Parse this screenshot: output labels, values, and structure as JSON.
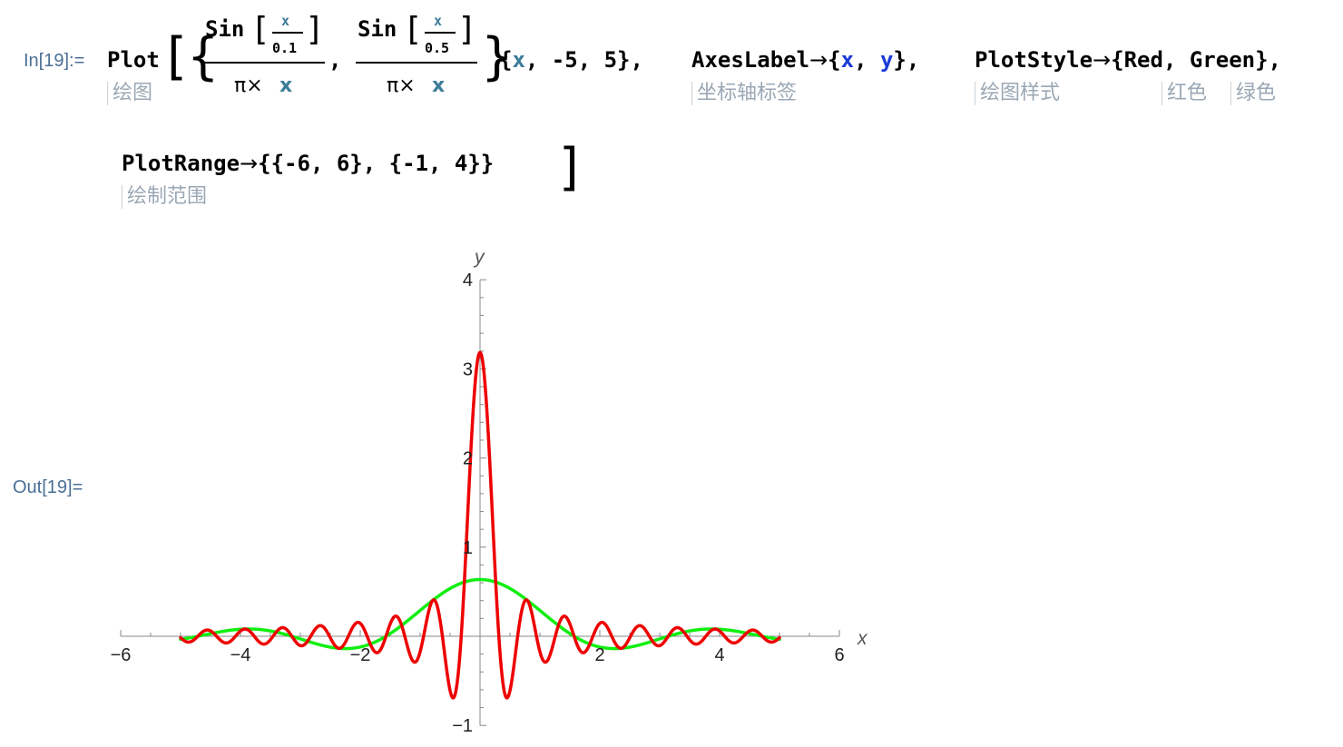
{
  "notebook": {
    "input_label": "In[19]:=",
    "output_label": "Out[19]="
  },
  "code": {
    "plot": "Plot",
    "sin1": "Sin",
    "sin2": "Sin",
    "x_small": "x",
    "den_a": "0.1",
    "den_b": "0.5",
    "pi_times": "π×",
    "x_var": "x",
    "comma": ",",
    "range_open": "{",
    "range_x": "x",
    "range_rest": ", -5, 5},",
    "axes_label_kw": "AxesLabel",
    "arrow": "→",
    "axes_x": "x",
    "axes_y": "y",
    "plot_style_kw": "PlotStyle",
    "style_values": "{Red, Green},",
    "plot_range_kw": "PlotRange",
    "plot_range_value": "{{-6, 6}, {-1, 4}}"
  },
  "tips": {
    "plot": "绘图",
    "axes_label": "坐标轴标签",
    "plot_style": "绘图样式",
    "red": "红色",
    "green": "绿色",
    "plot_range": "绘制范围"
  },
  "colors": {
    "series_red": "#ee0000",
    "series_green": "#11ee11",
    "axis": "#888888",
    "label_blue": "#4a6f96"
  },
  "chart_data": {
    "type": "line",
    "title": "",
    "xlabel": "x",
    "ylabel": "y",
    "xlim": [
      -6,
      6
    ],
    "ylim": [
      -1,
      4
    ],
    "domain": [
      -5,
      5
    ],
    "x_ticks": [
      "−6",
      "−4",
      "−2",
      "2",
      "4",
      "6"
    ],
    "y_ticks": [
      "−1",
      "1",
      "2",
      "3",
      "4"
    ],
    "x_tick_values": [
      -6,
      -4,
      -2,
      2,
      4,
      6
    ],
    "y_tick_values": [
      -1,
      1,
      2,
      3,
      4
    ],
    "series": [
      {
        "expr": "Sin[x/0.1]/(π x)",
        "color": "Red",
        "a": 0.1
      },
      {
        "expr": "Sin[x/0.5]/(π x)",
        "color": "Green",
        "a": 0.5
      }
    ],
    "grid": false,
    "legend": "none"
  }
}
